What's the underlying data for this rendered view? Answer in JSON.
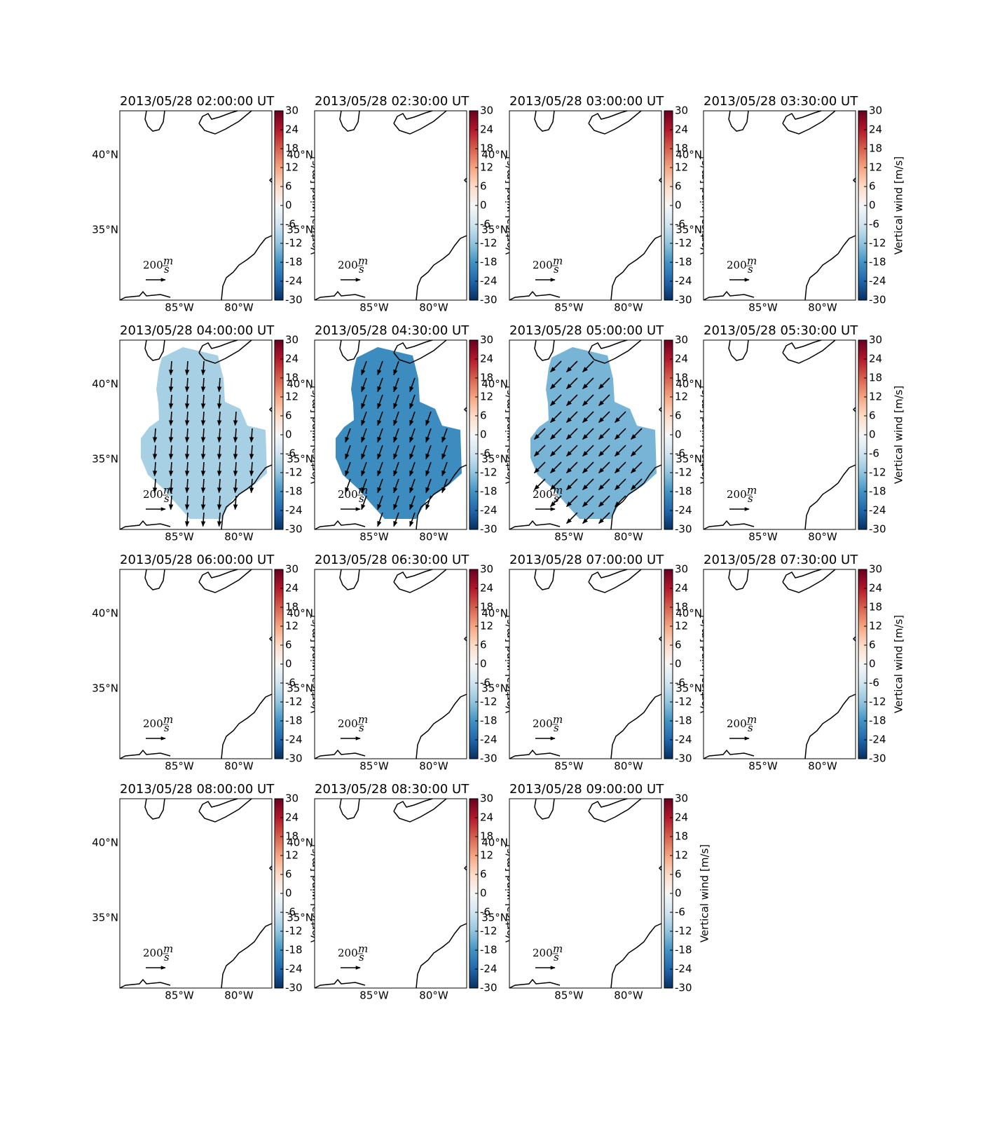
{
  "colorbar": {
    "label": "Vertical wind [m/s]",
    "lim": [
      -30,
      30
    ],
    "ticks": [
      -30,
      -24,
      -18,
      -12,
      -6,
      0,
      6,
      12,
      18,
      24,
      30
    ]
  },
  "lat_ticks": [
    {
      "value": 35,
      "label": "35°N"
    },
    {
      "value": 40,
      "label": "40°N"
    }
  ],
  "lon_ticks": [
    {
      "value": -85,
      "label": "85°W"
    },
    {
      "value": -80,
      "label": "80°W"
    }
  ],
  "quiver_key": {
    "value": 200,
    "unit_numerator": "m",
    "unit_denominator": "s"
  },
  "panels": [
    {
      "title": "2013/05/28 02:00:00 UT",
      "vertical_wind": null,
      "wind_u": null,
      "wind_v": null
    },
    {
      "title": "2013/05/28 02:30:00 UT",
      "vertical_wind": null,
      "wind_u": null,
      "wind_v": null
    },
    {
      "title": "2013/05/28 03:00:00 UT",
      "vertical_wind": null,
      "wind_u": null,
      "wind_v": null
    },
    {
      "title": "2013/05/28 03:30:00 UT",
      "vertical_wind": null,
      "wind_u": null,
      "wind_v": null
    },
    {
      "title": "2013/05/28 04:00:00 UT",
      "vertical_wind": -10,
      "wind_u": -10,
      "wind_v": -140
    },
    {
      "title": "2013/05/28 04:30:00 UT",
      "vertical_wind": -19,
      "wind_u": -50,
      "wind_v": -140
    },
    {
      "title": "2013/05/28 05:00:00 UT",
      "vertical_wind": -14,
      "wind_u": -110,
      "wind_v": -110
    },
    {
      "title": "2013/05/28 05:30:00 UT",
      "vertical_wind": null,
      "wind_u": null,
      "wind_v": null
    },
    {
      "title": "2013/05/28 06:00:00 UT",
      "vertical_wind": null,
      "wind_u": null,
      "wind_v": null
    },
    {
      "title": "2013/05/28 06:30:00 UT",
      "vertical_wind": null,
      "wind_u": null,
      "wind_v": null
    },
    {
      "title": "2013/05/28 07:00:00 UT",
      "vertical_wind": null,
      "wind_u": null,
      "wind_v": null
    },
    {
      "title": "2013/05/28 07:30:00 UT",
      "vertical_wind": null,
      "wind_u": null,
      "wind_v": null
    },
    {
      "title": "2013/05/28 08:00:00 UT",
      "vertical_wind": null,
      "wind_u": null,
      "wind_v": null
    },
    {
      "title": "2013/05/28 08:30:00 UT",
      "vertical_wind": null,
      "wind_u": null,
      "wind_v": null
    },
    {
      "title": "2013/05/28 09:00:00 UT",
      "vertical_wind": null,
      "wind_u": null,
      "wind_v": null
    }
  ]
}
